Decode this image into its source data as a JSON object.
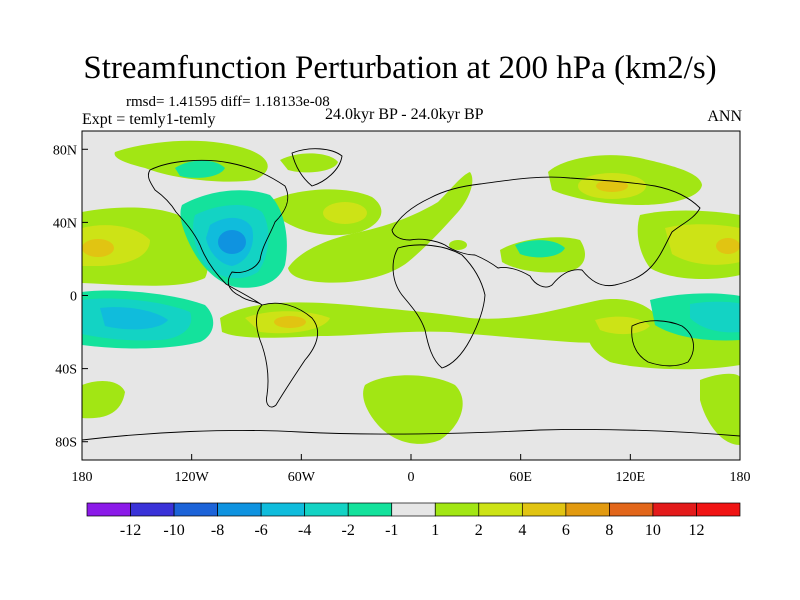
{
  "plot": {
    "title": "Streamfunction Perturbation at 200 hPa (km2/s)",
    "stats_text": "rmsd= 1.41595  diff= 1.18133e-08",
    "left_label": "Expt = temly1-temly",
    "center_label": "24.0kyr BP - 24.0kyr BP",
    "right_label": "ANN"
  },
  "map_data": {
    "projection": "cylindrical-equidistant",
    "lon_range": [
      -180,
      180
    ],
    "lat_range": [
      -90,
      90
    ],
    "x_tick_labels": [
      "180",
      "120W",
      "60W",
      "0",
      "60E",
      "120E",
      "180"
    ],
    "y_tick_labels": [
      "80N",
      "40N",
      "0",
      "40S",
      "80S"
    ],
    "field_units": "km2/s"
  },
  "colorbar": {
    "labels": [
      "-12",
      "-10",
      "-8",
      "-6",
      "-4",
      "-2",
      "-1",
      "1",
      "2",
      "4",
      "6",
      "8",
      "10",
      "12"
    ],
    "colors": [
      "#8b1ae8",
      "#3a32d8",
      "#1c63d8",
      "#0f93e0",
      "#10bcdc",
      "#13d3c4",
      "#14e29c",
      "#e6e6e6",
      "#a2e614",
      "#cde316",
      "#e1c412",
      "#e29a10",
      "#e2661a",
      "#e31a1a",
      "#f01414"
    ]
  },
  "colors": {
    "background": "#e6e6e6",
    "coastline": "#000000",
    "frame": "#000000"
  }
}
